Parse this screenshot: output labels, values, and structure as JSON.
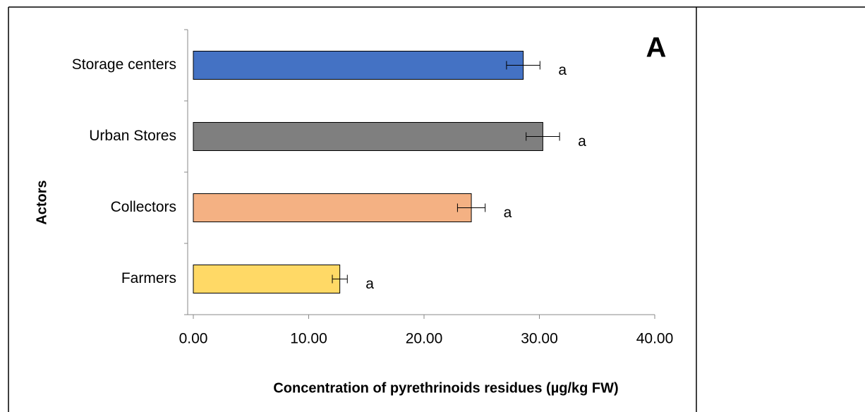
{
  "chart_data": {
    "type": "bar",
    "orientation": "horizontal",
    "title": "A",
    "x_label": "Concentration of pyrethrinoids residues (µg/kg FW)",
    "y_label": "Actors",
    "categories": [
      "Storage centers",
      "Urban Stores",
      "Collectors",
      "Farmers"
    ],
    "values": [
      28.6,
      30.3,
      24.1,
      12.7
    ],
    "errors": [
      1.45,
      1.45,
      1.2,
      0.65
    ],
    "annotations": [
      "a",
      "a",
      "a",
      "a"
    ],
    "colors": [
      "#4472c4",
      "#7f7f7f",
      "#f4b183",
      "#ffd966"
    ],
    "xlim": [
      0,
      40
    ],
    "xticks": [
      {
        "value": 0,
        "label": "0.00"
      },
      {
        "value": 10,
        "label": "10.00"
      },
      {
        "value": 20,
        "label": "20.00"
      },
      {
        "value": 30,
        "label": "30.00"
      },
      {
        "value": 40,
        "label": "40.00"
      }
    ],
    "grid": false
  }
}
